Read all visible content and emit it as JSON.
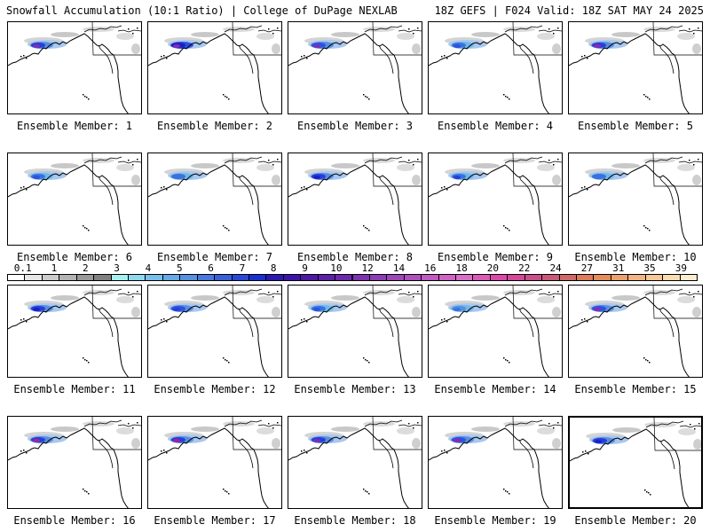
{
  "header": {
    "left": "Snowfall Accumulation (10:1 Ratio) | College of DuPage NEXLAB",
    "right": "18Z GEFS | F024 Valid: 18Z SAT MAY 24 2025"
  },
  "panels": [
    {
      "label": "Ensemble Member: 1",
      "snow": [
        "#a8c8f0",
        "#5a8de0",
        "#2a3cd8",
        "#7a30b8"
      ],
      "highlight": false
    },
    {
      "label": "Ensemble Member: 2",
      "snow": [
        "#a8c8f0",
        "#3050e0",
        "#1a20c8",
        "#8a2ab0"
      ],
      "highlight": false
    },
    {
      "label": "Ensemble Member: 3",
      "snow": [
        "#a8c8f0",
        "#5a8de0",
        "#3050e0",
        "#7a30b8"
      ],
      "highlight": false
    },
    {
      "label": "Ensemble Member: 4",
      "snow": [
        "#a8c8f0",
        "#70b8e8",
        "#3a70e0",
        "#3050e0"
      ],
      "highlight": false
    },
    {
      "label": "Ensemble Member: 5",
      "snow": [
        "#a8c8f0",
        "#5a8de0",
        "#2a3cd8",
        "#8a2ab0"
      ],
      "highlight": false
    },
    {
      "label": "Ensemble Member: 6",
      "snow": [
        "#a8c8f0",
        "#70b8e8",
        "#3a70e0",
        "#3050e0"
      ],
      "highlight": false
    },
    {
      "label": "Ensemble Member: 7",
      "snow": [
        "#a8c8f0",
        "#70b8e8",
        "#3a70e0",
        "#3a70e0"
      ],
      "highlight": false
    },
    {
      "label": "Ensemble Member: 8",
      "snow": [
        "#a8c8f0",
        "#5a8de0",
        "#2a3cd8",
        "#1a20c8"
      ],
      "highlight": false
    },
    {
      "label": "Ensemble Member: 9",
      "snow": [
        "#a8c8f0",
        "#70b8e8",
        "#3a70e0",
        "#2a3cd8"
      ],
      "highlight": false
    },
    {
      "label": "Ensemble Member: 10",
      "snow": [
        "#a8c8f0",
        "#70b8e8",
        "#3a70e0",
        "#3a70e0"
      ],
      "highlight": false
    },
    {
      "label": "Ensemble Member: 11",
      "snow": [
        "#a8c8f0",
        "#5a8de0",
        "#2a3cd8",
        "#1a20c8"
      ],
      "highlight": false
    },
    {
      "label": "Ensemble Member: 12",
      "snow": [
        "#a8c8f0",
        "#5a8de0",
        "#3050e0",
        "#2a3cd8"
      ],
      "highlight": false
    },
    {
      "label": "Ensemble Member: 13",
      "snow": [
        "#a8c8f0",
        "#70b8e8",
        "#3a70e0",
        "#3050e0"
      ],
      "highlight": false
    },
    {
      "label": "Ensemble Member: 14",
      "snow": [
        "#a8c8f0",
        "#70b8e8",
        "#5a8de0",
        "#3a70e0"
      ],
      "highlight": false
    },
    {
      "label": "Ensemble Member: 15",
      "snow": [
        "#a8c8f0",
        "#5a8de0",
        "#3050e0",
        "#8a2ab0"
      ],
      "highlight": false
    },
    {
      "label": "Ensemble Member: 16",
      "snow": [
        "#a8c8f0",
        "#5a8de0",
        "#2a3cd8",
        "#9a2aa0"
      ],
      "highlight": false
    },
    {
      "label": "Ensemble Member: 17",
      "snow": [
        "#a8c8f0",
        "#5a8de0",
        "#2a3cd8",
        "#a8209a"
      ],
      "highlight": false
    },
    {
      "label": "Ensemble Member: 18",
      "snow": [
        "#a8c8f0",
        "#5a8de0",
        "#2a3cd8",
        "#7a30b8"
      ],
      "highlight": false
    },
    {
      "label": "Ensemble Member: 19",
      "snow": [
        "#a8c8f0",
        "#5a8de0",
        "#3050e0",
        "#8a2ab0"
      ],
      "highlight": false
    },
    {
      "label": "Ensemble Member: 20",
      "snow": [
        "#a8c8f0",
        "#5a8de0",
        "#2a3cd8",
        "#1a20c8"
      ],
      "highlight": true
    }
  ],
  "legend": {
    "colors": [
      "#ffffff",
      "#e6e6e6",
      "#cccccc",
      "#b3b3b3",
      "#999999",
      "#808080",
      "#a8f0f0",
      "#90d8ee",
      "#78c0ea",
      "#68a8e6",
      "#5890e2",
      "#4878de",
      "#3860da",
      "#2848d6",
      "#1830d2",
      "#2a18b0",
      "#3c14a8",
      "#4e18a4",
      "#5e20a8",
      "#6e28ac",
      "#7e32b0",
      "#8e3cb4",
      "#9e46b8",
      "#ae50bc",
      "#be5ac0",
      "#ce64c4",
      "#d86ec8",
      "#da5ab8",
      "#dc48a8",
      "#d44898",
      "#c85088",
      "#c85a78",
      "#d06a6a",
      "#dc7c5c",
      "#e48e5c",
      "#eca070",
      "#f2b484",
      "#f6c898",
      "#f9dcb0",
      "#fcecd0"
    ],
    "ticks": [
      {
        "label": "0.1",
        "index": 1
      },
      {
        "label": "1",
        "index": 3
      },
      {
        "label": "2",
        "index": 5
      },
      {
        "label": "3",
        "index": 7
      },
      {
        "label": "4",
        "index": 9
      },
      {
        "label": "5",
        "index": 11
      },
      {
        "label": "6",
        "index": 13
      },
      {
        "label": "7",
        "index": 15
      },
      {
        "label": "8",
        "index": 17
      },
      {
        "label": "9",
        "index": 19
      },
      {
        "label": "10",
        "index": 21
      },
      {
        "label": "12",
        "index": 23
      },
      {
        "label": "14",
        "index": 25
      },
      {
        "label": "16",
        "index": 27
      },
      {
        "label": "18",
        "index": 29
      },
      {
        "label": "20",
        "index": 31
      },
      {
        "label": "22",
        "index": 33
      },
      {
        "label": "24",
        "index": 35
      },
      {
        "label": "27",
        "index": 37
      },
      {
        "label": "31",
        "index": 39
      },
      {
        "label": "35",
        "index": 41
      },
      {
        "label": "39",
        "index": 43
      }
    ]
  }
}
